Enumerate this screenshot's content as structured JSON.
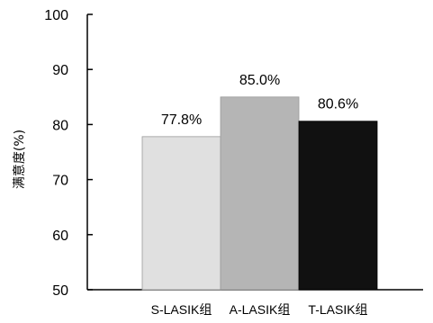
{
  "chart_data": {
    "type": "bar",
    "title": "",
    "xlabel": "",
    "ylabel": "满意度(%)",
    "ylim": [
      50,
      100
    ],
    "yticks": [
      50,
      60,
      70,
      80,
      90,
      100
    ],
    "grid": false,
    "categories": [
      "S-LASIK组",
      "A-LASIK组",
      "T-LASIK组"
    ],
    "values": [
      77.8,
      85.0,
      80.6
    ],
    "data_labels": [
      "77.8%",
      "85.0%",
      "80.6%"
    ],
    "colors": [
      "#e0e0e0",
      "#b5b5b5",
      "#111111"
    ]
  }
}
